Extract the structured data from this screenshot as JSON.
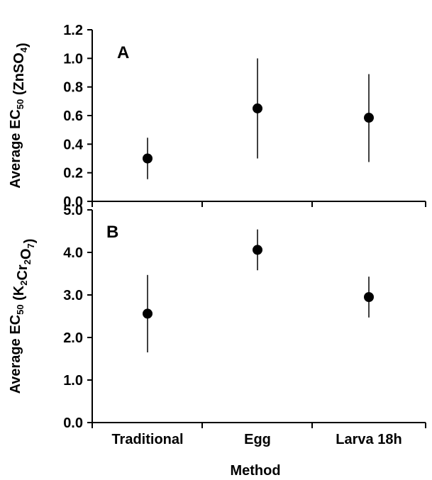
{
  "chart_data": [
    {
      "type": "scatter",
      "panel_label": "A",
      "ylabel_main": "Average EC",
      "ylabel_sub": "50",
      "ylabel_compound": [
        "(ZnSO",
        {
          "sub": "4"
        },
        ")"
      ],
      "ylim": [
        0,
        1.2
      ],
      "yticks": [
        "0.0",
        "0.2",
        "0.4",
        "0.6",
        "0.8",
        "1.0",
        "1.2"
      ],
      "ytick_values": [
        0,
        0.2,
        0.4,
        0.6,
        0.8,
        1.0,
        1.2
      ],
      "categories": [
        "Traditional",
        "Egg",
        "Larva 18h"
      ],
      "values": [
        0.3,
        0.65,
        0.585
      ],
      "error_low": [
        0.155,
        0.3,
        0.275
      ],
      "error_high": [
        0.445,
        1.0,
        0.89
      ],
      "grid": false
    },
    {
      "type": "scatter",
      "panel_label": "B",
      "ylabel_main": "Average EC",
      "ylabel_sub": "50",
      "ylabel_compound": [
        "(K",
        {
          "sub": "2"
        },
        "Cr",
        {
          "sub": "2"
        },
        "O",
        {
          "sub": "7"
        },
        ")"
      ],
      "ylim": [
        0,
        5.0
      ],
      "yticks": [
        "0.0",
        "1.0",
        "2.0",
        "3.0",
        "4.0",
        "5.0"
      ],
      "ytick_values": [
        0,
        1,
        2,
        3,
        4,
        5
      ],
      "categories": [
        "Traditional",
        "Egg",
        "Larva 18h"
      ],
      "values": [
        2.56,
        4.06,
        2.95
      ],
      "error_low": [
        1.65,
        3.58,
        2.47
      ],
      "error_high": [
        3.47,
        4.54,
        3.43
      ],
      "grid": false
    }
  ],
  "xlabel": "Method",
  "colors": {
    "marker": "#000000",
    "axis": "#000000",
    "errorbar": "#000000"
  }
}
